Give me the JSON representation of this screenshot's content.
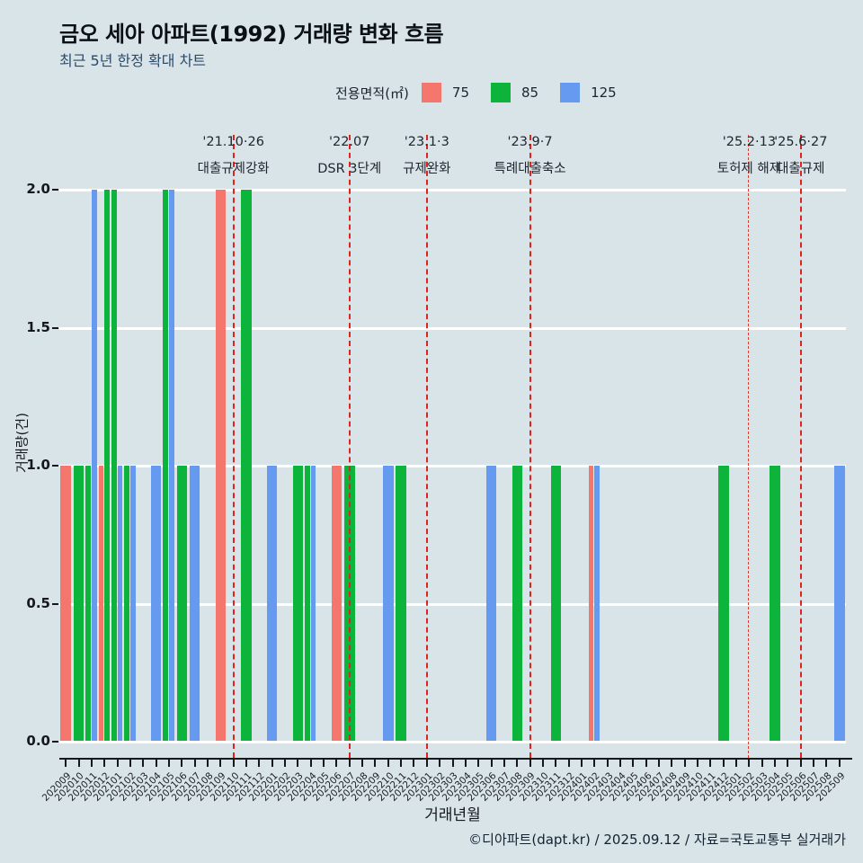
{
  "header": {
    "title": "금오 세아 아파트(1992) 거래량 변화 흐름",
    "subtitle": "최근 5년 한정 확대 차트"
  },
  "legend": {
    "label": "전용면적(㎡)",
    "items": [
      {
        "label": "75",
        "color": "#F4766C"
      },
      {
        "label": "85",
        "color": "#0CB43C"
      },
      {
        "label": "125",
        "color": "#6699F0"
      }
    ]
  },
  "chart_data": {
    "type": "bar",
    "title": "금오 세아 아파트(1992) 거래량 변화 흐름",
    "subtitle": "최근 5년 한정 확대 차트",
    "xlabel": "거래년월",
    "ylabel": "거래량(건)",
    "ylim": [
      0,
      2.0
    ],
    "yticks": [
      "2.0",
      "1.5",
      "1.0",
      "0.5",
      "0.0"
    ],
    "grid": true,
    "legend_position": "top",
    "background": "#D9E4E9",
    "gridline_color": "#FFFFFF",
    "annotation_line_color": "#DF241F",
    "categories": [
      "202009",
      "202010",
      "202011",
      "202012",
      "202101",
      "202102",
      "202103",
      "202104",
      "202105",
      "202106",
      "202107",
      "202108",
      "202109",
      "202110",
      "202111",
      "202112",
      "202201",
      "202202",
      "202203",
      "202204",
      "202205",
      "202206",
      "202207",
      "202208",
      "202209",
      "202210",
      "202211",
      "202212",
      "202301",
      "202302",
      "202303",
      "202304",
      "202305",
      "202306",
      "202307",
      "202308",
      "202309",
      "202310",
      "202311",
      "202312",
      "202401",
      "202402",
      "202403",
      "202404",
      "202405",
      "202406",
      "202407",
      "202408",
      "202409",
      "202410",
      "202411",
      "202412",
      "202501",
      "202502",
      "202503",
      "202504",
      "202505",
      "202506",
      "202507",
      "202508",
      "202509"
    ],
    "series": [
      {
        "name": "75",
        "color": "#F4766C",
        "values": {
          "202009": 1,
          "202012": 1,
          "202109": 2,
          "202206": 1,
          "202402": 1
        }
      },
      {
        "name": "85",
        "color": "#0CB43C",
        "values": {
          "202010": 1,
          "202011": 1,
          "202012": 2,
          "202101": 2,
          "202102": 1,
          "202105": 2,
          "202106": 1,
          "202111": 2,
          "202203": 1,
          "202204": 1,
          "202207": 1,
          "202211": 1,
          "202308": 1,
          "202311": 1,
          "202412": 1,
          "202504": 1
        }
      },
      {
        "name": "125",
        "color": "#6699F0",
        "values": {
          "202011": 2,
          "202101": 1,
          "202102": 1,
          "202104": 1,
          "202105": 2,
          "202107": 1,
          "202201": 1,
          "202204": 1,
          "202210": 1,
          "202306": 1,
          "202402": 1,
          "202509": 1
        }
      }
    ],
    "annotations": [
      {
        "date": "'21.10·26",
        "label": "대출규제강화",
        "month": "202110",
        "thin": false
      },
      {
        "date": "'22.07",
        "label": "DSR 3단계",
        "month": "202207",
        "thin": false
      },
      {
        "date": "'23.1·3",
        "label": "규제완화",
        "month": "202301",
        "thin": false
      },
      {
        "date": "'23.9·7",
        "label": "특례대출축소",
        "month": "202309",
        "thin": false
      },
      {
        "date": "'25.2·13",
        "label": "토허제 해제",
        "month": "202502",
        "thin": true
      },
      {
        "date": "'25.6·27",
        "label": "대출규제",
        "month": "202506",
        "thin": false
      }
    ]
  },
  "footer": {
    "credit": "©디아파트(dapt.kr) / 2025.09.12 / 자료=국토교통부 실거래가"
  }
}
